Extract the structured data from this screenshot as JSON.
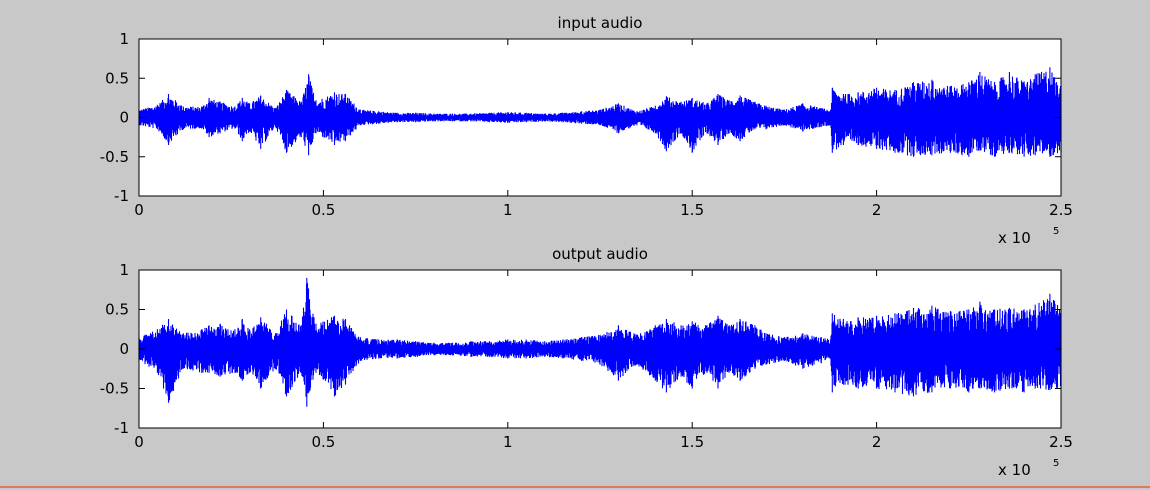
{
  "colors": {
    "figure_background": "#c8c8c8",
    "axes_background": "#ffffff",
    "series": "#0000ff",
    "axis": "#000000",
    "bottom_border": "#e07a5f"
  },
  "chart_data": [
    {
      "type": "line",
      "title": "input audio",
      "xlabel": "",
      "ylabel": "",
      "xlim": [
        0,
        250000
      ],
      "ylim": [
        -1,
        1
      ],
      "x_tick_values": [
        0,
        50000,
        100000,
        150000,
        200000,
        250000
      ],
      "x_tick_labels": [
        "0",
        "0.5",
        "1",
        "1.5",
        "2",
        "2.5"
      ],
      "x_multiplier_base": "x 10",
      "x_multiplier_exponent": "5",
      "y_tick_values": [
        1,
        0.5,
        0,
        -0.5,
        -1
      ],
      "y_tick_labels": [
        "1",
        "0.5",
        "0",
        "-0.5",
        "-1"
      ],
      "grid": false,
      "legend": false,
      "series": [
        {
          "color": "#0000ff",
          "x": [
            0,
            5000,
            8000,
            12000,
            17000,
            19000,
            22000,
            26000,
            28000,
            30000,
            33000,
            37000,
            40000,
            44000,
            46000,
            48000,
            53000,
            56000,
            60000,
            65000,
            70000,
            75000,
            80000,
            85000,
            90000,
            95000,
            100000,
            105000,
            110000,
            115000,
            120000,
            125000,
            130000,
            135000,
            140000,
            143000,
            147000,
            150000,
            154000,
            157000,
            160000,
            163000,
            167000,
            170000,
            175000,
            180000,
            185000,
            187500,
            188000,
            191000,
            195000,
            200000,
            205000,
            210000,
            215000,
            220000,
            225000,
            228000,
            232000,
            236000,
            240000,
            243000,
            247000,
            250000
          ],
          "y_upper": [
            0.1,
            0.16,
            0.3,
            0.14,
            0.14,
            0.25,
            0.2,
            0.14,
            0.25,
            0.18,
            0.28,
            0.12,
            0.35,
            0.2,
            0.55,
            0.22,
            0.32,
            0.3,
            0.1,
            0.08,
            0.06,
            0.06,
            0.05,
            0.05,
            0.05,
            0.06,
            0.07,
            0.06,
            0.05,
            0.06,
            0.08,
            0.1,
            0.18,
            0.08,
            0.15,
            0.27,
            0.2,
            0.25,
            0.18,
            0.3,
            0.22,
            0.28,
            0.2,
            0.15,
            0.1,
            0.18,
            0.12,
            0.1,
            0.38,
            0.3,
            0.32,
            0.38,
            0.35,
            0.45,
            0.48,
            0.4,
            0.45,
            0.58,
            0.45,
            0.58,
            0.46,
            0.55,
            0.64,
            0.4
          ],
          "y_lower": [
            -0.1,
            -0.15,
            -0.35,
            -0.15,
            -0.14,
            -0.25,
            -0.2,
            -0.14,
            -0.3,
            -0.18,
            -0.4,
            -0.12,
            -0.45,
            -0.25,
            -0.48,
            -0.2,
            -0.35,
            -0.3,
            -0.1,
            -0.08,
            -0.06,
            -0.06,
            -0.05,
            -0.05,
            -0.05,
            -0.06,
            -0.07,
            -0.06,
            -0.05,
            -0.06,
            -0.08,
            -0.1,
            -0.2,
            -0.1,
            -0.2,
            -0.43,
            -0.2,
            -0.45,
            -0.2,
            -0.35,
            -0.2,
            -0.3,
            -0.15,
            -0.15,
            -0.1,
            -0.18,
            -0.12,
            -0.1,
            -0.45,
            -0.35,
            -0.35,
            -0.4,
            -0.45,
            -0.5,
            -0.48,
            -0.45,
            -0.5,
            -0.42,
            -0.5,
            -0.45,
            -0.5,
            -0.48,
            -0.5,
            -0.45
          ]
        }
      ]
    },
    {
      "type": "line",
      "title": "output audio",
      "xlabel": "",
      "ylabel": "",
      "xlim": [
        0,
        250000
      ],
      "ylim": [
        -1,
        1
      ],
      "x_tick_values": [
        0,
        50000,
        100000,
        150000,
        200000,
        250000
      ],
      "x_tick_labels": [
        "0",
        "0.5",
        "1",
        "1.5",
        "2",
        "2.5"
      ],
      "x_multiplier_base": "x 10",
      "x_multiplier_exponent": "5",
      "y_tick_values": [
        1,
        0.5,
        0,
        -0.5,
        -1
      ],
      "y_tick_labels": [
        "1",
        "0.5",
        "0",
        "-0.5",
        "-1"
      ],
      "grid": false,
      "legend": false,
      "series": [
        {
          "color": "#0000ff",
          "x": [
            0,
            5000,
            8000,
            12000,
            17000,
            19000,
            22000,
            26000,
            28000,
            30000,
            33000,
            37000,
            40000,
            44000,
            45500,
            48000,
            53000,
            56000,
            60000,
            65000,
            70000,
            75000,
            80000,
            85000,
            90000,
            95000,
            100000,
            105000,
            110000,
            115000,
            120000,
            125000,
            130000,
            135000,
            140000,
            143000,
            147000,
            150000,
            154000,
            157000,
            160000,
            163000,
            167000,
            170000,
            175000,
            180000,
            185000,
            187500,
            188000,
            191000,
            195000,
            200000,
            205000,
            210000,
            215000,
            220000,
            225000,
            228000,
            232000,
            236000,
            240000,
            243000,
            247000,
            250000
          ],
          "y_upper": [
            0.15,
            0.25,
            0.38,
            0.2,
            0.25,
            0.3,
            0.32,
            0.25,
            0.38,
            0.25,
            0.4,
            0.2,
            0.5,
            0.3,
            0.9,
            0.32,
            0.42,
            0.38,
            0.15,
            0.12,
            0.12,
            0.1,
            0.08,
            0.08,
            0.1,
            0.1,
            0.12,
            0.12,
            0.1,
            0.12,
            0.15,
            0.18,
            0.3,
            0.18,
            0.3,
            0.38,
            0.3,
            0.35,
            0.3,
            0.42,
            0.3,
            0.38,
            0.3,
            0.2,
            0.15,
            0.2,
            0.15,
            0.12,
            0.45,
            0.38,
            0.4,
            0.42,
            0.45,
            0.52,
            0.55,
            0.48,
            0.5,
            0.6,
            0.5,
            0.52,
            0.5,
            0.56,
            0.7,
            0.5
          ],
          "y_lower": [
            -0.15,
            -0.3,
            -0.68,
            -0.25,
            -0.3,
            -0.3,
            -0.35,
            -0.3,
            -0.4,
            -0.3,
            -0.5,
            -0.25,
            -0.6,
            -0.3,
            -0.73,
            -0.3,
            -0.6,
            -0.45,
            -0.15,
            -0.12,
            -0.12,
            -0.1,
            -0.08,
            -0.08,
            -0.1,
            -0.1,
            -0.12,
            -0.12,
            -0.1,
            -0.12,
            -0.15,
            -0.2,
            -0.4,
            -0.2,
            -0.4,
            -0.55,
            -0.35,
            -0.5,
            -0.3,
            -0.5,
            -0.3,
            -0.4,
            -0.25,
            -0.2,
            -0.15,
            -0.25,
            -0.18,
            -0.12,
            -0.55,
            -0.45,
            -0.5,
            -0.5,
            -0.55,
            -0.6,
            -0.55,
            -0.5,
            -0.55,
            -0.5,
            -0.55,
            -0.5,
            -0.55,
            -0.5,
            -0.52,
            -0.5
          ]
        }
      ]
    }
  ]
}
